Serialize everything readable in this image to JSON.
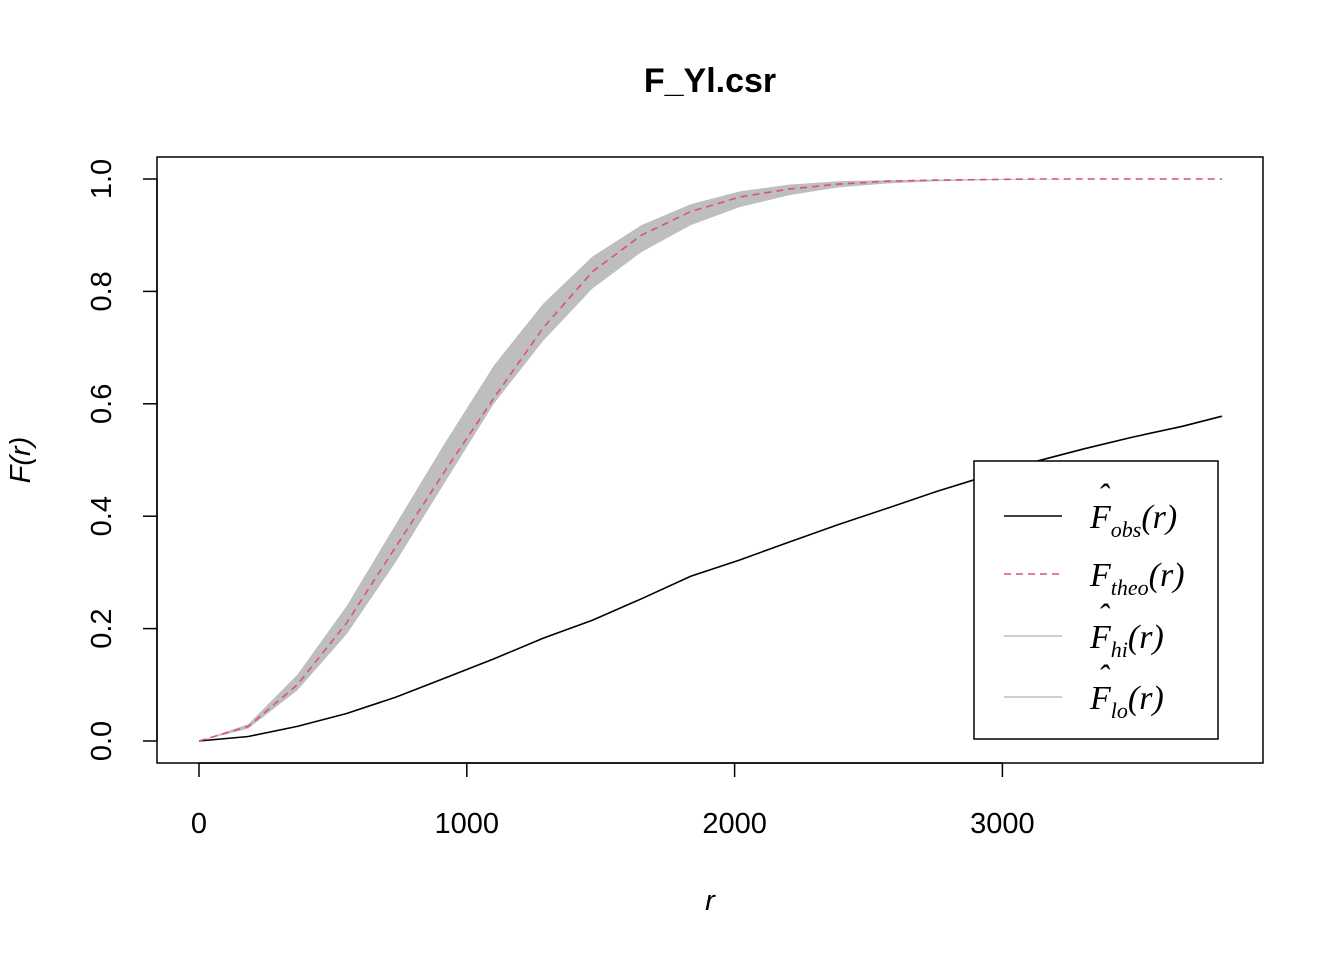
{
  "chart_data": {
    "type": "line",
    "title": "F_Yl.csr",
    "xlabel": "r",
    "ylabel": "F(r)",
    "xlim": [
      0,
      3830
    ],
    "ylim": [
      0,
      1
    ],
    "xticks": [
      "0",
      "1000",
      "2000",
      "3000"
    ],
    "yticks": [
      "0.0",
      "0.2",
      "0.4",
      "0.6",
      "0.8",
      "1.0"
    ],
    "x": [
      0,
      184,
      367,
      551,
      734,
      918,
      1101,
      1285,
      1469,
      1652,
      1836,
      2019,
      2203,
      2387,
      2570,
      2754,
      2937,
      3121,
      3305,
      3488,
      3672,
      3820
    ],
    "series": [
      {
        "name": "obs",
        "style": "solid",
        "color": "#000000",
        "values": [
          0,
          0.008,
          0.026,
          0.049,
          0.078,
          0.112,
          0.146,
          0.183,
          0.215,
          0.253,
          0.293,
          0.322,
          0.354,
          0.385,
          0.414,
          0.444,
          0.471,
          0.497,
          0.52,
          0.541,
          0.56,
          0.578
        ]
      },
      {
        "name": "theo",
        "style": "dashed",
        "color": "#DF536B",
        "values": [
          0,
          0.026,
          0.1,
          0.21,
          0.345,
          0.48,
          0.61,
          0.735,
          0.835,
          0.9,
          0.942,
          0.968,
          0.982,
          0.991,
          0.996,
          0.998,
          0.999,
          1.0,
          1.0,
          1.0,
          1.0,
          1.0
        ]
      },
      {
        "name": "hi",
        "style": "solid",
        "color": "#BEBEBE",
        "values": [
          0,
          0.03,
          0.118,
          0.24,
          0.385,
          0.53,
          0.668,
          0.778,
          0.862,
          0.918,
          0.955,
          0.978,
          0.99,
          0.996,
          0.998,
          0.999,
          1.0,
          1.0,
          1.0,
          1.0,
          1.0,
          1.0
        ]
      },
      {
        "name": "lo",
        "style": "solid",
        "color": "#BEBEBE",
        "values": [
          0,
          0.022,
          0.09,
          0.19,
          0.318,
          0.46,
          0.6,
          0.712,
          0.805,
          0.87,
          0.918,
          0.95,
          0.971,
          0.985,
          0.992,
          0.996,
          0.998,
          0.999,
          1.0,
          1.0,
          1.0,
          1.0
        ]
      }
    ],
    "legend": {
      "position": "bottom-right",
      "entries": [
        {
          "base": "F",
          "hat": true,
          "sub": "obs",
          "arg": "(r)",
          "style": "solid",
          "color": "#000000"
        },
        {
          "base": "F",
          "hat": false,
          "sub": "theo",
          "arg": "(r)",
          "style": "dashed",
          "color": "#DF536B"
        },
        {
          "base": "F",
          "hat": true,
          "sub": "hi",
          "arg": "(r)",
          "style": "solid",
          "color": "#BEBEBE"
        },
        {
          "base": "F",
          "hat": true,
          "sub": "lo",
          "arg": "(r)",
          "style": "solid",
          "color": "#BEBEBE"
        }
      ]
    },
    "envelope_color": "#BEBEBE",
    "grid": false
  }
}
